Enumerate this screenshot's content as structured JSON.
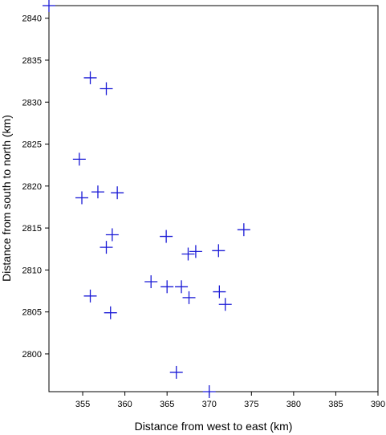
{
  "chart_data": {
    "type": "scatter",
    "xlabel": "Distance from west to east (km)",
    "ylabel": "Distance from south to north (km)",
    "xlim": [
      351,
      390
    ],
    "ylim": [
      2795.5,
      2841.5
    ],
    "xticks": [
      355,
      360,
      365,
      370,
      375,
      380,
      385,
      390
    ],
    "yticks": [
      2800,
      2805,
      2810,
      2815,
      2820,
      2825,
      2830,
      2835,
      2840
    ],
    "marker": "plus",
    "marker_color": "#1a1ad6",
    "grid": false,
    "points": [
      {
        "x": 351.0,
        "y": 2841.5
      },
      {
        "x": 355.9,
        "y": 2832.9
      },
      {
        "x": 357.8,
        "y": 2831.6
      },
      {
        "x": 354.6,
        "y": 2823.2
      },
      {
        "x": 354.9,
        "y": 2818.6
      },
      {
        "x": 356.8,
        "y": 2819.3
      },
      {
        "x": 359.1,
        "y": 2819.2
      },
      {
        "x": 358.5,
        "y": 2814.2
      },
      {
        "x": 357.8,
        "y": 2812.7
      },
      {
        "x": 364.9,
        "y": 2814.0
      },
      {
        "x": 374.1,
        "y": 2814.8
      },
      {
        "x": 367.5,
        "y": 2811.9
      },
      {
        "x": 368.4,
        "y": 2812.2
      },
      {
        "x": 371.1,
        "y": 2812.3
      },
      {
        "x": 363.1,
        "y": 2808.6
      },
      {
        "x": 365.0,
        "y": 2808.0
      },
      {
        "x": 366.7,
        "y": 2808.0
      },
      {
        "x": 367.6,
        "y": 2806.7
      },
      {
        "x": 371.2,
        "y": 2807.4
      },
      {
        "x": 371.9,
        "y": 2805.9
      },
      {
        "x": 355.9,
        "y": 2806.9
      },
      {
        "x": 358.3,
        "y": 2804.9
      },
      {
        "x": 366.1,
        "y": 2797.8
      },
      {
        "x": 370.0,
        "y": 2795.5
      }
    ]
  }
}
